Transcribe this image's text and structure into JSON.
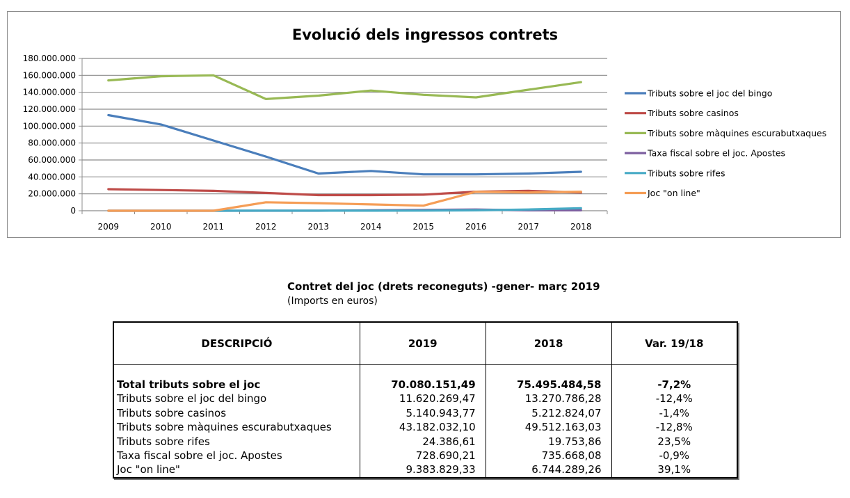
{
  "chart_data": {
    "type": "line",
    "title": "Evolució dels ingressos contrets",
    "xlabel": "",
    "ylabel": "",
    "x": [
      "2009",
      "2010",
      "2011",
      "2012",
      "2013",
      "2014",
      "2015",
      "2016",
      "2017",
      "2018"
    ],
    "ylim": [
      0,
      180000000
    ],
    "yticks": [
      0,
      20000000,
      40000000,
      60000000,
      80000000,
      100000000,
      120000000,
      140000000,
      160000000,
      180000000
    ],
    "ytick_labels": [
      "0",
      "20.000.000",
      "40.000.000",
      "60.000.000",
      "80.000.000",
      "100.000.000",
      "120.000.000",
      "140.000.000",
      "160.000.000",
      "180.000.000"
    ],
    "grid": true,
    "legend_position": "right",
    "series": [
      {
        "name": "Tributs sobre el joc del bingo",
        "color": "#4a7ebb",
        "values": [
          113000000,
          102000000,
          83000000,
          64000000,
          44000000,
          47000000,
          43000000,
          43000000,
          44000000,
          46000000
        ]
      },
      {
        "name": "Tributs sobre casinos",
        "color": "#be4b48",
        "values": [
          25500000,
          24500000,
          23500000,
          21000000,
          18500000,
          18500000,
          19000000,
          22500000,
          23500000,
          21500000
        ]
      },
      {
        "name": "Tributs sobre màquines escurabutxaques",
        "color": "#98b954",
        "values": [
          154000000,
          159000000,
          160000000,
          132000000,
          136000000,
          142000000,
          137000000,
          134000000,
          143000000,
          152000000
        ]
      },
      {
        "name": "Taxa fiscal sobre el joc. Apostes",
        "color": "#7d5fa0",
        "values": [
          0,
          0,
          0,
          0,
          0,
          500000,
          1000000,
          1500000,
          500000,
          500000
        ]
      },
      {
        "name": "Tributs sobre rifes",
        "color": "#46aac5",
        "values": [
          0,
          0,
          0,
          100000,
          100000,
          100000,
          200000,
          500000,
          1500000,
          3000000
        ]
      },
      {
        "name": "Joc \"on line\"",
        "color": "#f59d56",
        "values": [
          0,
          0,
          0,
          10000000,
          9000000,
          7500000,
          6000000,
          22500000,
          21500000,
          22500000
        ]
      }
    ]
  },
  "table": {
    "title": "Contret  del joc (drets reconeguts) -gener- març 2019",
    "subtitle": "(Imports en euros)",
    "headers": [
      "DESCRIPCIÓ",
      "2019",
      "2018",
      "Var. 19/18"
    ],
    "rows": [
      {
        "desc": "Total tributs sobre el joc",
        "v2019": "70.080.151,49",
        "v2018": "75.495.484,58",
        "var": "-7,2%"
      },
      {
        "desc": "Tributs sobre el joc del bingo",
        "v2019": "11.620.269,47",
        "v2018": "13.270.786,28",
        "var": "-12,4%"
      },
      {
        "desc": "Tributs sobre casinos",
        "v2019": "5.140.943,77",
        "v2018": "5.212.824,07",
        "var": "-1,4%"
      },
      {
        "desc": "Tributs sobre màquines escurabutxaques",
        "v2019": "43.182.032,10",
        "v2018": "49.512.163,03",
        "var": "-12,8%"
      },
      {
        "desc": "Tributs sobre rifes",
        "v2019": "24.386,61",
        "v2018": "19.753,86",
        "var": "23,5%"
      },
      {
        "desc": "Taxa fiscal sobre el joc. Apostes",
        "v2019": "728.690,21",
        "v2018": "735.668,08",
        "var": "-0,9%"
      },
      {
        "desc": "Joc \"on line\"",
        "v2019": "9.383.829,33",
        "v2018": "6.744.289,26",
        "var": "39,1%"
      }
    ]
  }
}
